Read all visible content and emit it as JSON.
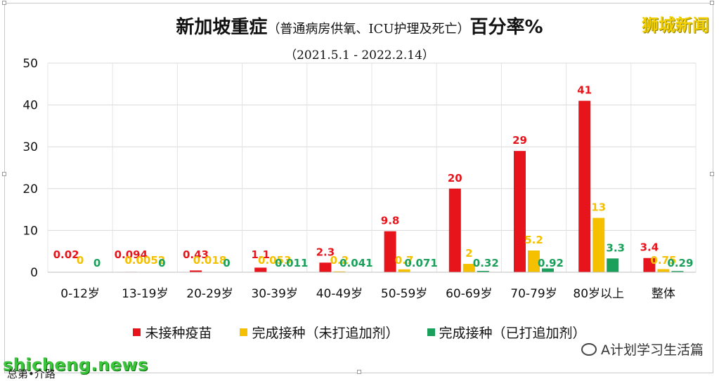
{
  "header": {
    "title_main": "新加坡重症",
    "title_paren": "（普通病房供氧、ICU护理及死亡）",
    "title_tail": "百分率%",
    "subtitle": "（2021.5.1  - 2022.2.14）"
  },
  "brand": {
    "name": "狮城新闻",
    "color": "#f2d000"
  },
  "watermark": {
    "text": "shicheng.news"
  },
  "source_fragment": "总第•介路",
  "wechat": {
    "account": "A计划学习生活篇",
    "icon": "wechat-icon"
  },
  "chart_data": {
    "type": "bar",
    "title": "新加坡重症（普通病房供氧、ICU护理及死亡）百分率%",
    "subtitle": "（2021.5.1  - 2022.2.14）",
    "categories": [
      "0-12岁",
      "13-19岁",
      "20-29岁",
      "30-39岁",
      "40-49岁",
      "50-59岁",
      "60-69岁",
      "70-79岁",
      "80岁以上",
      "整体"
    ],
    "series": [
      {
        "name": "未接种疫苗",
        "color": "#e8141b",
        "values": [
          0.02,
          0.094,
          0.43,
          1.1,
          2.3,
          9.8,
          20,
          29,
          41,
          3.4
        ],
        "labels": [
          "0.02",
          "0.094",
          "0.43",
          "1.1",
          "2.3",
          "9.8",
          "20",
          "29",
          "41",
          "3.4"
        ]
      },
      {
        "name": "完成接种（未打追加剂）",
        "color": "#f5c000",
        "values": [
          0,
          0.0052,
          0.018,
          0.053,
          0.2,
          0.7,
          2,
          5.2,
          13,
          0.75
        ],
        "labels": [
          "0",
          "0.0052",
          "0.018",
          "0.053",
          "0.2",
          "0.7",
          "2",
          "5.2",
          "13",
          "0.75"
        ]
      },
      {
        "name": "完成接种（已打追加剂）",
        "color": "#1aa05a",
        "values": [
          0,
          0,
          0,
          0.011,
          0.041,
          0.071,
          0.32,
          0.92,
          3.3,
          0.29
        ],
        "labels": [
          "0",
          "0",
          "0",
          "0.011",
          "0.041",
          "0.071",
          "0.32",
          "0.92",
          "3.3",
          "0.29"
        ]
      }
    ],
    "ylim": [
      0,
      50
    ],
    "yticks": [
      0,
      10,
      20,
      30,
      40,
      50
    ],
    "xlabel": "",
    "ylabel": "",
    "grid": true,
    "legend": "bottom"
  }
}
